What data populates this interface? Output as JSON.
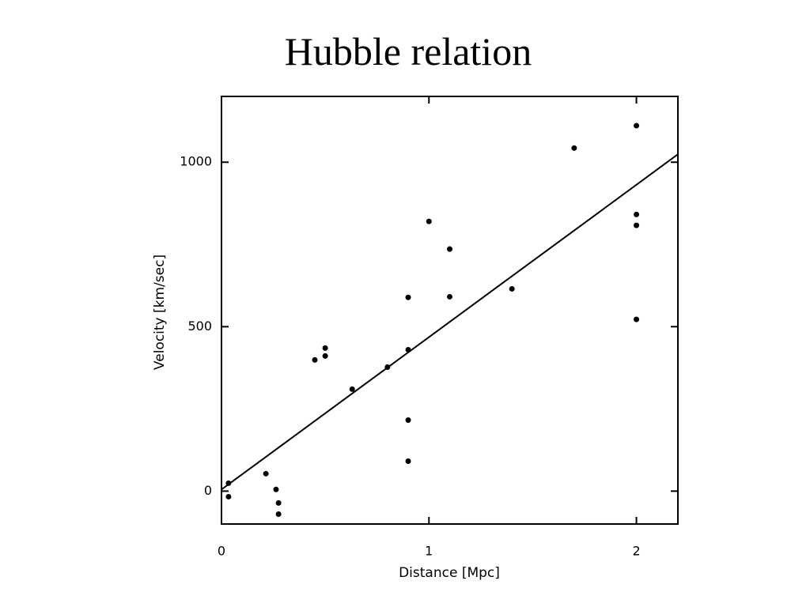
{
  "chart_data": {
    "type": "scatter",
    "title": "Hubble relation",
    "xlabel": "Distance [Mpc]",
    "ylabel": "Velocity [km/sec]",
    "x": [
      0.034,
      0.034,
      0.214,
      0.263,
      0.275,
      0.275,
      0.45,
      0.5,
      0.5,
      0.63,
      0.8,
      0.9,
      0.9,
      0.9,
      0.9,
      1.0,
      1.1,
      1.1,
      1.4,
      1.7,
      2.0,
      2.0,
      2.0,
      2.0
    ],
    "y": [
      24,
      -17,
      53,
      5,
      -36,
      -70,
      399,
      411,
      435,
      310,
      377,
      589,
      430,
      216,
      91,
      820,
      736,
      591,
      615,
      1043,
      1111,
      841,
      808,
      522
    ],
    "color": "#000000",
    "fit_line": {
      "x": [
        0,
        2.2
      ],
      "y": [
        5,
        1024
      ]
    },
    "xlim": [
      0,
      2.2
    ],
    "ylim": [
      -100,
      1200
    ],
    "xticks": [
      0,
      1,
      2
    ],
    "yticks": [
      0,
      500,
      1000
    ]
  }
}
